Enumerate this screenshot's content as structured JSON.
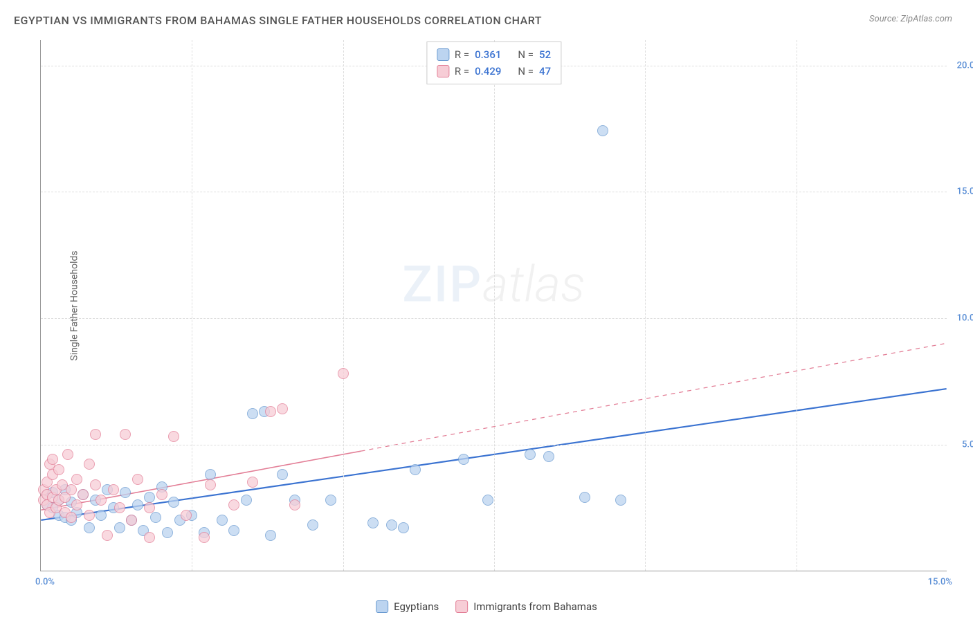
{
  "header": {
    "title": "EGYPTIAN VS IMMIGRANTS FROM BAHAMAS SINGLE FATHER HOUSEHOLDS CORRELATION CHART",
    "source": "Source: ZipAtlas.com"
  },
  "watermark": {
    "zip": "ZIP",
    "atlas": "atlas"
  },
  "chart": {
    "type": "scatter",
    "y_label": "Single Father Households",
    "x_min": 0,
    "x_max": 15,
    "y_min": 0,
    "y_max": 21,
    "y_ticks": [
      5,
      10,
      15,
      20
    ],
    "y_tick_labels": [
      "5.0%",
      "10.0%",
      "15.0%",
      "20.0%"
    ],
    "x_tick_left": "0.0%",
    "x_tick_right": "15.0%",
    "y_tick_color": "#5b8fd6",
    "x_tick_color": "#5b8fd6",
    "grid_color": "#dddddd",
    "background_color": "#ffffff",
    "stat_box": {
      "rows": [
        {
          "swatch_fill": "#bcd4f0",
          "swatch_border": "#6b9bd1",
          "r_label": "R =",
          "r_val": "0.361",
          "n_label": "N =",
          "n_val": "52"
        },
        {
          "swatch_fill": "#f7cdd6",
          "swatch_border": "#e37f97",
          "r_label": "R =",
          "r_val": "0.429",
          "n_label": "N =",
          "n_val": "47"
        }
      ]
    },
    "legend": {
      "items": [
        {
          "swatch_fill": "#bcd4f0",
          "swatch_border": "#6b9bd1",
          "label": "Egyptians"
        },
        {
          "swatch_fill": "#f7cdd6",
          "swatch_border": "#e37f97",
          "label": "Immigrants from Bahamas"
        }
      ]
    },
    "series": [
      {
        "name": "egyptians",
        "fill": "#bcd4f0",
        "stroke": "#6b9bd1",
        "opacity": 0.75,
        "radius": 8,
        "trend": {
          "color": "#3b73d1",
          "width": 2.2,
          "x1": 0,
          "y1": 2.0,
          "x2": 15,
          "y2": 7.2,
          "solid_until_x": 15,
          "dash": null
        },
        "points": [
          [
            0.1,
            3.0
          ],
          [
            0.1,
            2.6
          ],
          [
            0.2,
            2.5
          ],
          [
            0.2,
            3.1
          ],
          [
            0.3,
            2.2
          ],
          [
            0.3,
            2.8
          ],
          [
            0.4,
            2.1
          ],
          [
            0.4,
            3.2
          ],
          [
            0.5,
            2.7
          ],
          [
            0.5,
            2.0
          ],
          [
            0.6,
            2.3
          ],
          [
            0.7,
            3.0
          ],
          [
            0.8,
            1.7
          ],
          [
            0.9,
            2.8
          ],
          [
            1.0,
            2.2
          ],
          [
            1.1,
            3.2
          ],
          [
            1.2,
            2.5
          ],
          [
            1.3,
            1.7
          ],
          [
            1.4,
            3.1
          ],
          [
            1.5,
            2.0
          ],
          [
            1.6,
            2.6
          ],
          [
            1.7,
            1.6
          ],
          [
            1.8,
            2.9
          ],
          [
            1.9,
            2.1
          ],
          [
            2.0,
            3.3
          ],
          [
            2.1,
            1.5
          ],
          [
            2.2,
            2.7
          ],
          [
            2.3,
            2.0
          ],
          [
            2.5,
            2.2
          ],
          [
            2.7,
            1.5
          ],
          [
            2.8,
            3.8
          ],
          [
            3.0,
            2.0
          ],
          [
            3.2,
            1.6
          ],
          [
            3.4,
            2.8
          ],
          [
            3.5,
            6.2
          ],
          [
            3.7,
            6.3
          ],
          [
            3.8,
            1.4
          ],
          [
            4.0,
            3.8
          ],
          [
            4.2,
            2.8
          ],
          [
            4.5,
            1.8
          ],
          [
            4.8,
            2.8
          ],
          [
            5.5,
            1.9
          ],
          [
            5.8,
            1.8
          ],
          [
            6.0,
            1.7
          ],
          [
            6.2,
            4.0
          ],
          [
            7.0,
            4.4
          ],
          [
            7.4,
            2.8
          ],
          [
            8.1,
            4.6
          ],
          [
            8.4,
            4.5
          ],
          [
            9.0,
            2.9
          ],
          [
            9.3,
            17.4
          ],
          [
            9.6,
            2.8
          ]
        ]
      },
      {
        "name": "bahamas",
        "fill": "#f7cdd6",
        "stroke": "#e37f97",
        "opacity": 0.75,
        "radius": 8,
        "trend": {
          "color": "#e37f97",
          "width": 1.6,
          "x1": 0,
          "y1": 2.4,
          "x2": 15,
          "y2": 9.0,
          "solid_until_x": 5.3,
          "dash": "6 6"
        },
        "points": [
          [
            0.05,
            2.8
          ],
          [
            0.05,
            3.2
          ],
          [
            0.1,
            2.6
          ],
          [
            0.1,
            3.0
          ],
          [
            0.1,
            3.5
          ],
          [
            0.15,
            4.2
          ],
          [
            0.15,
            2.3
          ],
          [
            0.2,
            2.9
          ],
          [
            0.2,
            3.8
          ],
          [
            0.2,
            4.4
          ],
          [
            0.25,
            2.5
          ],
          [
            0.25,
            3.2
          ],
          [
            0.3,
            2.8
          ],
          [
            0.3,
            4.0
          ],
          [
            0.35,
            3.4
          ],
          [
            0.4,
            2.3
          ],
          [
            0.4,
            2.9
          ],
          [
            0.45,
            4.6
          ],
          [
            0.5,
            3.2
          ],
          [
            0.5,
            2.1
          ],
          [
            0.6,
            3.6
          ],
          [
            0.6,
            2.6
          ],
          [
            0.7,
            3.0
          ],
          [
            0.8,
            2.2
          ],
          [
            0.8,
            4.2
          ],
          [
            0.9,
            3.4
          ],
          [
            0.9,
            5.4
          ],
          [
            1.0,
            2.8
          ],
          [
            1.1,
            1.4
          ],
          [
            1.2,
            3.2
          ],
          [
            1.3,
            2.5
          ],
          [
            1.4,
            5.4
          ],
          [
            1.5,
            2.0
          ],
          [
            1.6,
            3.6
          ],
          [
            1.8,
            2.5
          ],
          [
            1.8,
            1.3
          ],
          [
            2.0,
            3.0
          ],
          [
            2.2,
            5.3
          ],
          [
            2.4,
            2.2
          ],
          [
            2.7,
            1.3
          ],
          [
            2.8,
            3.4
          ],
          [
            3.2,
            2.6
          ],
          [
            3.5,
            3.5
          ],
          [
            3.8,
            6.3
          ],
          [
            4.0,
            6.4
          ],
          [
            4.2,
            2.6
          ],
          [
            5.0,
            7.8
          ]
        ]
      }
    ]
  }
}
